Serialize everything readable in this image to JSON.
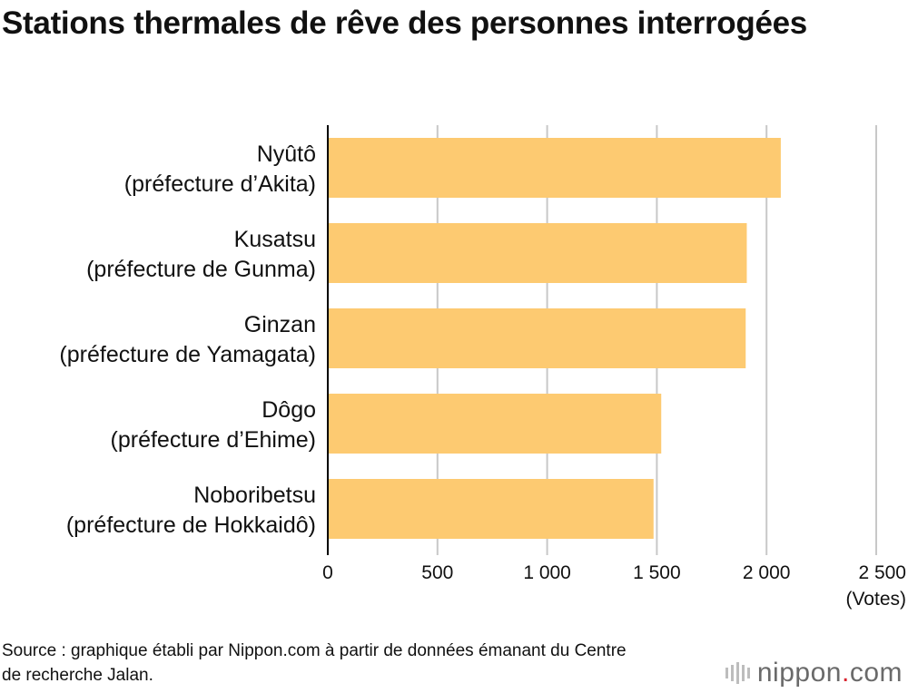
{
  "title": "Stations thermales de rêve des personnes interrogées",
  "source": "Source : graphique établi par Nippon.com à partir de données émanant du Centre de recherche Jalan.",
  "logo": {
    "name": "nippon",
    "dot": ".",
    "tld": "com",
    "dot_color": "#d9232e"
  },
  "chart_data": {
    "type": "bar",
    "orientation": "horizontal",
    "categories": [
      {
        "name": "Nyûtô",
        "sub": "(préfecture d’Akita)"
      },
      {
        "name": "Kusatsu",
        "sub": "(préfecture de Gunma)"
      },
      {
        "name": "Ginzan",
        "sub": "(préfecture de Yamagata)"
      },
      {
        "name": "Dôgo",
        "sub": "(préfecture d’Ehime)"
      },
      {
        "name": "Noboribetsu",
        "sub": "(préfecture de Hokkaidô)"
      }
    ],
    "values": [
      2065,
      1910,
      1905,
      1520,
      1485
    ],
    "xlim": [
      0,
      2500
    ],
    "ticks": [
      0,
      500,
      1000,
      1500,
      2000,
      2500
    ],
    "tick_labels": [
      "0",
      "500",
      "1 000",
      "1 500",
      "2 000",
      "2 500"
    ],
    "xlabel": "(Votes)",
    "grid": true,
    "bar_color": "#fdca71",
    "grid_color": "#c8c8c8"
  }
}
